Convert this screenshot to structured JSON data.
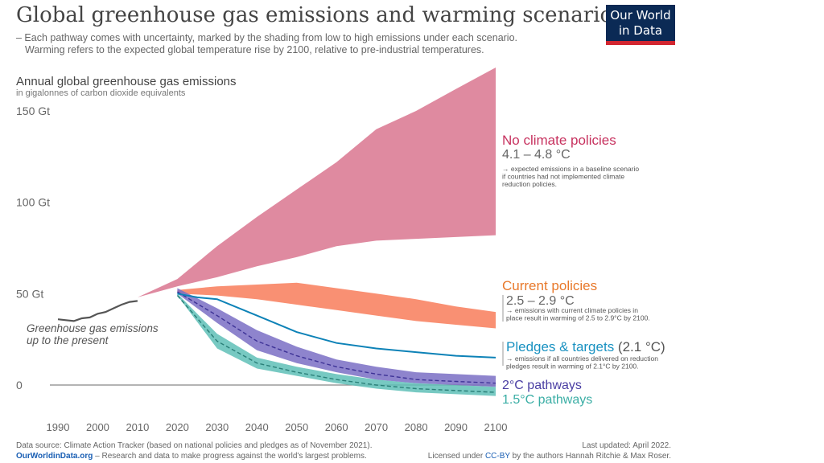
{
  "title": "Global greenhouse gas emissions and warming scenarios",
  "subtitle": [
    "– Each pathway comes with uncertainty, marked by the shading from low to high emissions under each scenario.",
    "Warming refers to the expected global temperature rise by 2100, relative to pre-industrial temperatures."
  ],
  "logo": {
    "line1": "Our World",
    "line2": "in Data"
  },
  "footer": {
    "source": "Data source: Climate Action Tracker (based on national policies and pledges as of November 2021).",
    "owid_link": "OurWorldinData.org",
    "owid_text": " – Research and data to make progress against the world's largest problems.",
    "updated": "Last updated: April 2022.",
    "license_pre": "Licensed under ",
    "license_link": "CC-BY",
    "license_post": " by the authors Hannah Ritchie & Max Roser."
  },
  "chart_data": {
    "type": "area",
    "title": "Annual global greenhouse gas emissions",
    "ylabel": "Annual global greenhouse gas emissions",
    "yunit": "in gigalonnes of carbon dioxide equivalents",
    "xlim": [
      1990,
      2100
    ],
    "ylim": [
      0,
      150
    ],
    "x_ticks": [
      "1990",
      "2000",
      "2010",
      "2020",
      "2030",
      "2040",
      "2050",
      "2060",
      "2070",
      "2080",
      "2090",
      "2100"
    ],
    "y_ticks": [
      {
        "value": 0,
        "label": "0"
      },
      {
        "value": 50,
        "label": "50 Gt"
      },
      {
        "value": 100,
        "label": "100 Gt"
      },
      {
        "value": 150,
        "label": "150 Gt"
      }
    ],
    "historical": {
      "name": "Greenhouse gas emissions up to the present",
      "label_lines": [
        "Greenhouse gas emissions",
        "up to the present"
      ],
      "color": "#555555",
      "x": [
        1990,
        1992,
        1994,
        1996,
        1998,
        2000,
        2002,
        2004,
        2006,
        2008,
        2010
      ],
      "y": [
        36,
        35.5,
        35,
        36.5,
        37,
        39,
        40,
        42,
        44,
        45.5,
        46
      ]
    },
    "series": [
      {
        "name": "No climate policies",
        "warming": "4.1 – 4.8 °C",
        "note": [
          "→ expected emissions in a baseline scenario",
          "if countries had not implemented climate",
          "reduction policies."
        ],
        "color": "#d9758f",
        "label_color": "#c7325f",
        "x": [
          2010,
          2020,
          2030,
          2040,
          2050,
          2060,
          2070,
          2080,
          2090,
          2100
        ],
        "upper": [
          48,
          58,
          76,
          92,
          107,
          122,
          140,
          150,
          162,
          174
        ],
        "lower": [
          48,
          54,
          59,
          65,
          70,
          76,
          79,
          80,
          81,
          82
        ]
      },
      {
        "name": "Current policies",
        "warming": "2.5 – 2.9 °C",
        "note": [
          "→ emissions with current climate policies in",
          "place result in warming of 2.5 to 2.9°C by 2100."
        ],
        "color": "#f98a6c",
        "label_color": "#e8792b",
        "x": [
          2020,
          2030,
          2040,
          2050,
          2060,
          2070,
          2080,
          2090,
          2100
        ],
        "upper": [
          52,
          54,
          55,
          56,
          53,
          50,
          47,
          43,
          40
        ],
        "lower": [
          50,
          49,
          47,
          44,
          41,
          38,
          35,
          33,
          31
        ]
      },
      {
        "name": "Pledges & targets",
        "warming": "(2.1 °C)",
        "note": [
          "→ emissions if all countries delivered on reduction",
          "pledges result in warming of 2.1°C by 2100."
        ],
        "color": "#0d82b7",
        "label_color": "#1891c1",
        "x": [
          2020,
          2025,
          2030,
          2040,
          2050,
          2060,
          2070,
          2080,
          2090,
          2100
        ],
        "y": [
          50,
          48,
          47,
          38,
          29,
          23,
          20,
          18,
          16,
          15
        ]
      },
      {
        "name": "2°C pathways",
        "color": "#7a6fc4",
        "label_color": "#4a3ea3",
        "x": [
          2020,
          2030,
          2040,
          2050,
          2060,
          2070,
          2080,
          2090,
          2100
        ],
        "upper": [
          53,
          42,
          30,
          21,
          14,
          10,
          7,
          6,
          5
        ],
        "lower": [
          50,
          34,
          19,
          12,
          7,
          3,
          1,
          0,
          -1
        ],
        "median": [
          51,
          38,
          24,
          16,
          10,
          6,
          3,
          2,
          1
        ]
      },
      {
        "name": "1.5°C pathways",
        "color": "#5fc0b7",
        "label_color": "#3aaea5",
        "x": [
          2020,
          2030,
          2040,
          2050,
          2060,
          2070,
          2080,
          2090,
          2100
        ],
        "upper": [
          50,
          28,
          15,
          10,
          6,
          3,
          1,
          0,
          -1
        ],
        "lower": [
          49,
          20,
          9,
          5,
          1,
          -2,
          -4,
          -5,
          -6
        ],
        "median": [
          49,
          24,
          12,
          7,
          3,
          0,
          -2,
          -3,
          -4
        ]
      }
    ]
  }
}
